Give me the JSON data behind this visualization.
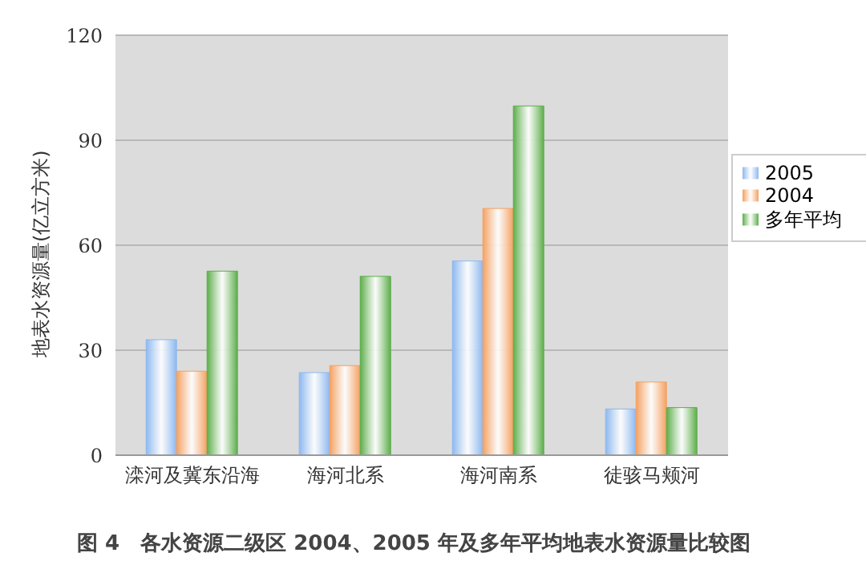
{
  "chart_data": {
    "type": "bar",
    "title": "图 4　各水资源二级区 2004、2005 年及多年平均地表水资源量比较图",
    "ylabel": "地表水资源量(亿立方米)",
    "categories": [
      "滦河及冀东沿海",
      "海河北系",
      "海河南系",
      "徒骇马颊河"
    ],
    "series": [
      {
        "name": "2005",
        "color": "#8cb8f0",
        "values": [
          33,
          23.6,
          55.5,
          13.2
        ]
      },
      {
        "name": "2004",
        "color": "#f5a060",
        "values": [
          24,
          25.6,
          70.5,
          20.9
        ]
      },
      {
        "name": "多年平均",
        "color": "#5cae4a",
        "values": [
          52.6,
          51.1,
          99.8,
          13.6
        ]
      }
    ],
    "ylim": [
      0,
      120
    ],
    "yticks": [
      0,
      30,
      60,
      90,
      120
    ],
    "grid": "y",
    "legend": "right"
  }
}
